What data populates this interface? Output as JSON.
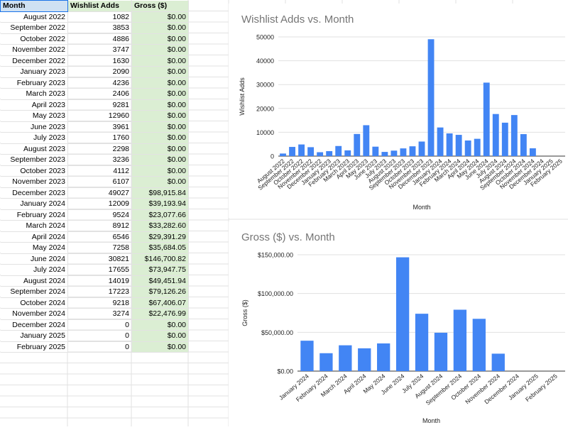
{
  "sheet": {
    "headers": {
      "month": "Month",
      "wishlist": "Wishlist Adds",
      "gross": "Gross ($)"
    },
    "rows": [
      {
        "month": "August 2022",
        "wishlist": "1082",
        "gross": "$0.00"
      },
      {
        "month": "September 2022",
        "wishlist": "3853",
        "gross": "$0.00"
      },
      {
        "month": "October 2022",
        "wishlist": "4886",
        "gross": "$0.00"
      },
      {
        "month": "November 2022",
        "wishlist": "3747",
        "gross": "$0.00"
      },
      {
        "month": "December 2022",
        "wishlist": "1630",
        "gross": "$0.00"
      },
      {
        "month": "January 2023",
        "wishlist": "2090",
        "gross": "$0.00"
      },
      {
        "month": "February 2023",
        "wishlist": "4236",
        "gross": "$0.00"
      },
      {
        "month": "March 2023",
        "wishlist": "2406",
        "gross": "$0.00"
      },
      {
        "month": "April 2023",
        "wishlist": "9281",
        "gross": "$0.00"
      },
      {
        "month": "May 2023",
        "wishlist": "12960",
        "gross": "$0.00"
      },
      {
        "month": "June 2023",
        "wishlist": "3961",
        "gross": "$0.00"
      },
      {
        "month": "July 2023",
        "wishlist": "1760",
        "gross": "$0.00"
      },
      {
        "month": "August 2023",
        "wishlist": "2298",
        "gross": "$0.00"
      },
      {
        "month": "September 2023",
        "wishlist": "3236",
        "gross": "$0.00"
      },
      {
        "month": "October 2023",
        "wishlist": "4112",
        "gross": "$0.00"
      },
      {
        "month": "November 2023",
        "wishlist": "6107",
        "gross": "$0.00"
      },
      {
        "month": "December 2023",
        "wishlist": "49027",
        "gross": "$98,915.84"
      },
      {
        "month": "January 2024",
        "wishlist": "12009",
        "gross": "$39,193.94"
      },
      {
        "month": "February 2024",
        "wishlist": "9524",
        "gross": "$23,077.66"
      },
      {
        "month": "March 2024",
        "wishlist": "8912",
        "gross": "$33,282.60"
      },
      {
        "month": "April 2024",
        "wishlist": "6546",
        "gross": "$29,391.29"
      },
      {
        "month": "May 2024",
        "wishlist": "7258",
        "gross": "$35,684.05"
      },
      {
        "month": "June 2024",
        "wishlist": "30821",
        "gross": "$146,700.82"
      },
      {
        "month": "July 2024",
        "wishlist": "17655",
        "gross": "$73,947.75"
      },
      {
        "month": "August 2024",
        "wishlist": "14019",
        "gross": "$49,451.94"
      },
      {
        "month": "September 2024",
        "wishlist": "17223",
        "gross": "$79,126.26"
      },
      {
        "month": "October 2024",
        "wishlist": "9218",
        "gross": "$67,406.07"
      },
      {
        "month": "November 2024",
        "wishlist": "3274",
        "gross": "$22,476.99"
      },
      {
        "month": "December 2024",
        "wishlist": "0",
        "gross": "$0.00"
      },
      {
        "month": "January 2025",
        "wishlist": "0",
        "gross": "$0.00"
      },
      {
        "month": "February 2025",
        "wishlist": "0",
        "gross": "$0.00"
      }
    ]
  },
  "chart_data": [
    {
      "type": "bar",
      "title": "Wishlist Adds vs. Month",
      "xlabel": "Month",
      "ylabel": "Wishlist Adds",
      "ylim": [
        0,
        50000
      ],
      "yticks": [
        "0",
        "10000",
        "20000",
        "30000",
        "40000",
        "50000"
      ],
      "grid": true,
      "bar_color": "#4285f4",
      "categories": [
        "August 2022",
        "September 2022",
        "October 2022",
        "November 2022",
        "December 2022",
        "January 2023",
        "February 2023",
        "March 2023",
        "April 2023",
        "May 2023",
        "June 2023",
        "July 2023",
        "August 2023",
        "September 2023",
        "October 2023",
        "November 2023",
        "December 2023",
        "January 2024",
        "February 2024",
        "March 2024",
        "April 2024",
        "May 2024",
        "June 2024",
        "July 2024",
        "August 2024",
        "September 2024",
        "October 2024",
        "November 2024",
        "December 2024",
        "January 2025",
        "February 2025"
      ],
      "values": [
        1082,
        3853,
        4886,
        3747,
        1630,
        2090,
        4236,
        2406,
        9281,
        12960,
        3961,
        1760,
        2298,
        3236,
        4112,
        6107,
        49027,
        12009,
        9524,
        8912,
        6546,
        7258,
        30821,
        17655,
        14019,
        17223,
        9218,
        3274,
        0,
        0,
        0
      ]
    },
    {
      "type": "bar",
      "title": "Gross ($) vs. Month",
      "xlabel": "Month",
      "ylabel": "Gross ($)",
      "ylim": [
        0,
        150000
      ],
      "yticks": [
        "$0.00",
        "$50,000.00",
        "$100,000.00",
        "$150,000.00"
      ],
      "grid": true,
      "bar_color": "#4285f4",
      "categories": [
        "January 2024",
        "February 2024",
        "March 2024",
        "April 2024",
        "May 2024",
        "June 2024",
        "July 2024",
        "August 2024",
        "September 2024",
        "October 2024",
        "November 2024",
        "December 2024",
        "January 2025",
        "February 2025"
      ],
      "values": [
        39193.94,
        23077.66,
        33282.6,
        29391.29,
        35684.05,
        146700.82,
        73947.75,
        49451.94,
        79126.26,
        67406.07,
        22476.99,
        0,
        0,
        0
      ]
    }
  ]
}
